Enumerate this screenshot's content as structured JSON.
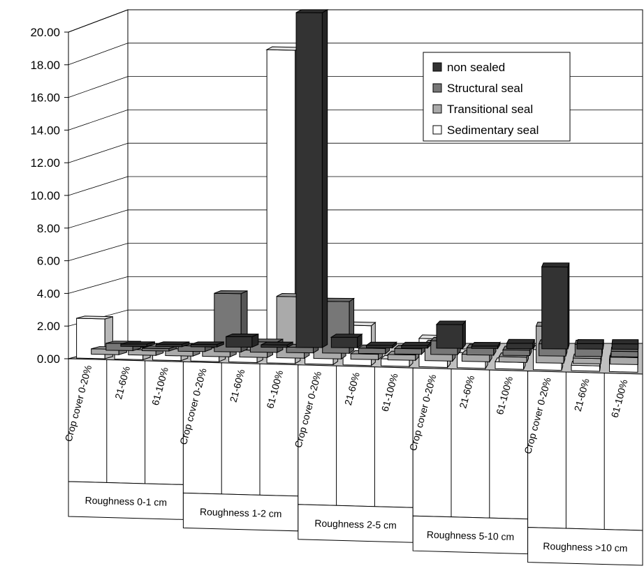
{
  "chart_data": {
    "type": "bar",
    "subtype": "3d-clustered-bar",
    "title": "",
    "xlabel": "",
    "ylabel": "",
    "ylim": [
      0,
      20
    ],
    "ytick_labels": [
      "0.00",
      "2.00",
      "4.00",
      "6.00",
      "8.00",
      "10.00",
      "12.00",
      "14.00",
      "16.00",
      "18.00",
      "20.00"
    ],
    "grid": true,
    "legend_position": "top-right",
    "categories": [
      "Crop cover 0-20%",
      "21-60%",
      "61-100%",
      "Crop cover 0-20%",
      "21-60%",
      "61-100%",
      "Crop cover 0-20%",
      "21-60%",
      "61-100%",
      "Crop cover 0-20%",
      "21-60%",
      "61-100%",
      "Crop cover 0-20%",
      "21-60%",
      "61-100%"
    ],
    "groups": [
      "Roughness 0-1 cm",
      "Roughness 1-2 cm",
      "Roughness 2-5 cm",
      "Roughness 5-10 cm",
      "Roughness >10 cm"
    ],
    "series": [
      {
        "name": "non sealed",
        "color": "#333333",
        "values": [
          0.0,
          0.0,
          0.0,
          0.5,
          0.0,
          20.0,
          0.5,
          0.0,
          0.0,
          1.3,
          0.0,
          0.2,
          4.8,
          0.2,
          0.2
        ]
      },
      {
        "name": "Structural seal",
        "color": "#777777",
        "values": [
          0.3,
          0.0,
          0.2,
          3.4,
          0.5,
          0.2,
          3.0,
          0.2,
          0.2,
          0.7,
          0.3,
          0.2,
          0.6,
          0.6,
          0.2
        ]
      },
      {
        "name": "Transitional seal",
        "color": "#aaaaaa",
        "values": [
          0.2,
          0.2,
          0.3,
          0.4,
          0.3,
          3.6,
          0.7,
          0.2,
          0.2,
          0.9,
          0.3,
          0.2,
          2.1,
          0.2,
          0.3
        ]
      },
      {
        "name": "Sedimentary seal",
        "color": "#ffffff",
        "values": [
          2.3,
          0.8,
          0.6,
          0.8,
          0.8,
          19.0,
          1.2,
          2.3,
          0.3,
          1.6,
          0.8,
          0.3,
          1.1,
          0.2,
          0.6
        ]
      }
    ]
  }
}
